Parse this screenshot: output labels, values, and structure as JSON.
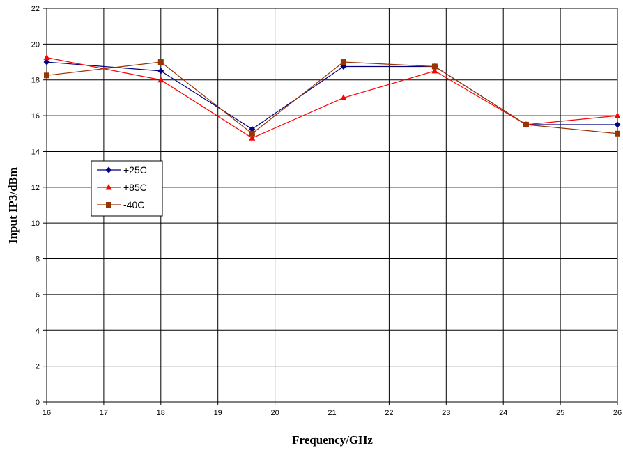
{
  "chart_data": {
    "type": "line",
    "xlabel": "Frequency/GHz",
    "ylabel": "Input IP3/dBm",
    "xlim": [
      16,
      26
    ],
    "ylim": [
      0,
      22
    ],
    "xticks": [
      "16",
      "17",
      "18",
      "19",
      "20",
      "21",
      "22",
      "23",
      "24",
      "25",
      "26"
    ],
    "yticks": [
      "0",
      "2",
      "4",
      "6",
      "8",
      "10",
      "12",
      "14",
      "16",
      "18",
      "20",
      "22"
    ],
    "grid": true,
    "legend_position": "left-middle",
    "series": [
      {
        "name": "+25C",
        "color": "#000080",
        "marker": "diamond",
        "points": [
          [
            16,
            19.0
          ],
          [
            18,
            18.5
          ],
          [
            19.6,
            15.25
          ],
          [
            21.2,
            18.75
          ],
          [
            22.8,
            18.75
          ],
          [
            24.4,
            15.5
          ],
          [
            26,
            15.5
          ]
        ]
      },
      {
        "name": "+85C",
        "color": "#ff0000",
        "marker": "triangle",
        "points": [
          [
            16,
            19.25
          ],
          [
            18,
            18.0
          ],
          [
            19.6,
            14.75
          ],
          [
            21.2,
            17.0
          ],
          [
            22.8,
            18.5
          ],
          [
            24.4,
            15.5
          ],
          [
            26,
            16.0
          ]
        ]
      },
      {
        "name": "-40C",
        "color": "#993300",
        "marker": "square",
        "points": [
          [
            16,
            18.25
          ],
          [
            18,
            19.0
          ],
          [
            19.6,
            15.0
          ],
          [
            21.2,
            19.0
          ],
          [
            22.8,
            18.75
          ],
          [
            24.4,
            15.5
          ],
          [
            26,
            15.0
          ]
        ]
      }
    ]
  }
}
